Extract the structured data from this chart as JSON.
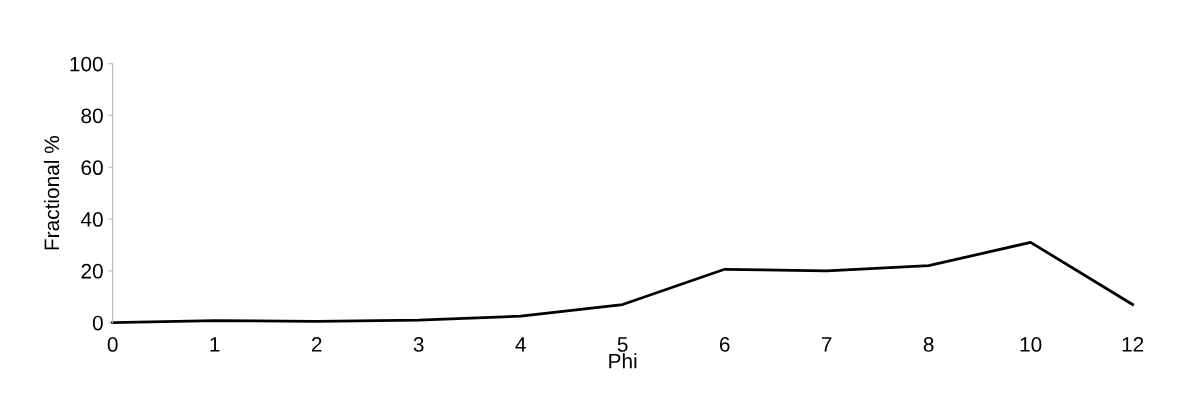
{
  "chart_data": {
    "type": "line",
    "xlabel": "Phi",
    "ylabel": "Fractional %",
    "categories": [
      "0",
      "1",
      "2",
      "3",
      "4",
      "5",
      "6",
      "7",
      "8",
      "10",
      "12"
    ],
    "series": [
      {
        "color": "#000000",
        "values": [
          0,
          0.8,
          0.5,
          1,
          2.5,
          7,
          20.6,
          20,
          22,
          31,
          7
        ]
      }
    ],
    "ylim": [
      0,
      100
    ],
    "yticks": [
      0,
      20,
      40,
      60,
      80,
      100
    ],
    "grid": false,
    "marker": "none",
    "line_style": "solid"
  }
}
